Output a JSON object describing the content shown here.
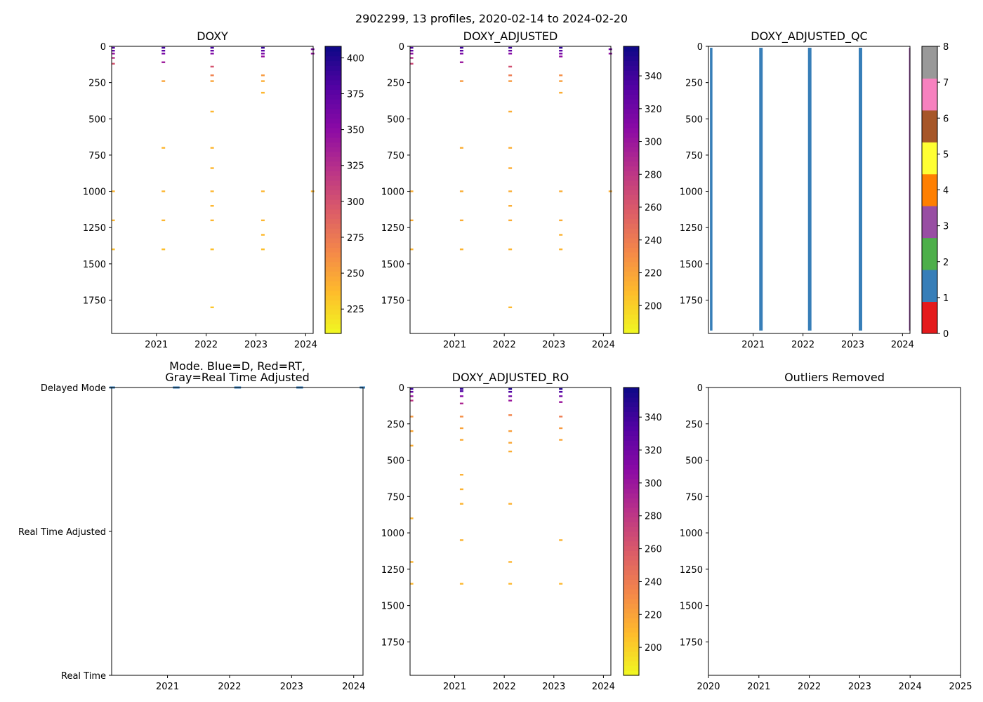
{
  "figure": {
    "suptitle": "2902299, 13 profiles, 2020-02-14 to 2024-02-20"
  },
  "chart_data": [
    {
      "id": "doxy",
      "type": "heatmap",
      "title": "DOXY",
      "xlim": [
        2020.1,
        2024.15
      ],
      "ylim": [
        1980,
        0
      ],
      "xticks": [
        2021,
        2022,
        2023,
        2024
      ],
      "xtick_labels": [
        "2021",
        "2022",
        "2023",
        "2024"
      ],
      "yticks": [
        0,
        250,
        500,
        750,
        1000,
        1250,
        1500,
        1750
      ],
      "ytick_labels": [
        "0",
        "250",
        "500",
        "750",
        "1000",
        "1250",
        "1500",
        "1750"
      ],
      "colorbar": {
        "cmap": "plasma_r",
        "range": [
          208,
          408
        ],
        "ticks": [
          225,
          250,
          275,
          300,
          325,
          350,
          375,
          400
        ],
        "tick_labels": [
          "225",
          "250",
          "275",
          "300",
          "325",
          "350",
          "375",
          "400"
        ]
      },
      "points": [
        {
          "t": 2020.13,
          "depth": 10,
          "value": 380
        },
        {
          "t": 2020.13,
          "depth": 30,
          "value": 370
        },
        {
          "t": 2020.13,
          "depth": 50,
          "value": 345
        },
        {
          "t": 2020.13,
          "depth": 80,
          "value": 320
        },
        {
          "t": 2020.13,
          "depth": 120,
          "value": 300
        },
        {
          "t": 2020.13,
          "depth": 1000,
          "value": 240
        },
        {
          "t": 2020.13,
          "depth": 1200,
          "value": 240
        },
        {
          "t": 2020.13,
          "depth": 1400,
          "value": 235
        },
        {
          "t": 2021.14,
          "depth": 10,
          "value": 385
        },
        {
          "t": 2021.14,
          "depth": 30,
          "value": 375
        },
        {
          "t": 2021.14,
          "depth": 50,
          "value": 360
        },
        {
          "t": 2021.14,
          "depth": 110,
          "value": 340
        },
        {
          "t": 2021.14,
          "depth": 240,
          "value": 250
        },
        {
          "t": 2021.14,
          "depth": 700,
          "value": 240
        },
        {
          "t": 2021.14,
          "depth": 1000,
          "value": 240
        },
        {
          "t": 2021.14,
          "depth": 1200,
          "value": 240
        },
        {
          "t": 2021.14,
          "depth": 1400,
          "value": 235
        },
        {
          "t": 2022.12,
          "depth": 10,
          "value": 385
        },
        {
          "t": 2022.12,
          "depth": 30,
          "value": 370
        },
        {
          "t": 2022.12,
          "depth": 50,
          "value": 355
        },
        {
          "t": 2022.12,
          "depth": 140,
          "value": 300
        },
        {
          "t": 2022.12,
          "depth": 200,
          "value": 270
        },
        {
          "t": 2022.12,
          "depth": 240,
          "value": 250
        },
        {
          "t": 2022.12,
          "depth": 450,
          "value": 240
        },
        {
          "t": 2022.12,
          "depth": 700,
          "value": 240
        },
        {
          "t": 2022.12,
          "depth": 840,
          "value": 240
        },
        {
          "t": 2022.12,
          "depth": 1000,
          "value": 240
        },
        {
          "t": 2022.12,
          "depth": 1100,
          "value": 240
        },
        {
          "t": 2022.12,
          "depth": 1200,
          "value": 240
        },
        {
          "t": 2022.12,
          "depth": 1400,
          "value": 235
        },
        {
          "t": 2022.12,
          "depth": 1800,
          "value": 232
        },
        {
          "t": 2023.14,
          "depth": 10,
          "value": 390
        },
        {
          "t": 2023.14,
          "depth": 30,
          "value": 375
        },
        {
          "t": 2023.14,
          "depth": 50,
          "value": 360
        },
        {
          "t": 2023.14,
          "depth": 70,
          "value": 345
        },
        {
          "t": 2023.14,
          "depth": 200,
          "value": 255
        },
        {
          "t": 2023.14,
          "depth": 240,
          "value": 245
        },
        {
          "t": 2023.14,
          "depth": 320,
          "value": 240
        },
        {
          "t": 2023.14,
          "depth": 1000,
          "value": 240
        },
        {
          "t": 2023.14,
          "depth": 1200,
          "value": 240
        },
        {
          "t": 2023.14,
          "depth": 1300,
          "value": 238
        },
        {
          "t": 2023.14,
          "depth": 1400,
          "value": 235
        },
        {
          "t": 2024.14,
          "depth": 20,
          "value": 360
        },
        {
          "t": 2024.14,
          "depth": 50,
          "value": 345
        },
        {
          "t": 2024.14,
          "depth": 1000,
          "value": 240
        }
      ]
    },
    {
      "id": "doxy-adjusted",
      "type": "heatmap",
      "title": "DOXY_ADJUSTED",
      "xlim": [
        2020.1,
        2024.15
      ],
      "ylim": [
        1980,
        0
      ],
      "xticks": [
        2021,
        2022,
        2023,
        2024
      ],
      "xtick_labels": [
        "2021",
        "2022",
        "2023",
        "2024"
      ],
      "yticks": [
        0,
        250,
        500,
        750,
        1000,
        1250,
        1500,
        1750
      ],
      "ytick_labels": [
        "0",
        "250",
        "500",
        "750",
        "1000",
        "1250",
        "1500",
        "1750"
      ],
      "colorbar": {
        "cmap": "plasma_r",
        "range": [
          183,
          358
        ],
        "ticks": [
          200,
          220,
          240,
          260,
          280,
          300,
          320,
          340
        ],
        "tick_labels": [
          "200",
          "220",
          "240",
          "260",
          "280",
          "300",
          "320",
          "340"
        ]
      },
      "points": [
        {
          "t": 2020.13,
          "depth": 10,
          "value": 335
        },
        {
          "t": 2020.13,
          "depth": 30,
          "value": 325
        },
        {
          "t": 2020.13,
          "depth": 50,
          "value": 305
        },
        {
          "t": 2020.13,
          "depth": 80,
          "value": 285
        },
        {
          "t": 2020.13,
          "depth": 120,
          "value": 270
        },
        {
          "t": 2020.13,
          "depth": 1000,
          "value": 215
        },
        {
          "t": 2020.13,
          "depth": 1200,
          "value": 215
        },
        {
          "t": 2020.13,
          "depth": 1400,
          "value": 212
        },
        {
          "t": 2021.14,
          "depth": 10,
          "value": 340
        },
        {
          "t": 2021.14,
          "depth": 30,
          "value": 330
        },
        {
          "t": 2021.14,
          "depth": 50,
          "value": 315
        },
        {
          "t": 2021.14,
          "depth": 110,
          "value": 300
        },
        {
          "t": 2021.14,
          "depth": 240,
          "value": 225
        },
        {
          "t": 2021.14,
          "depth": 700,
          "value": 215
        },
        {
          "t": 2021.14,
          "depth": 1000,
          "value": 215
        },
        {
          "t": 2021.14,
          "depth": 1200,
          "value": 215
        },
        {
          "t": 2021.14,
          "depth": 1400,
          "value": 212
        },
        {
          "t": 2022.12,
          "depth": 10,
          "value": 340
        },
        {
          "t": 2022.12,
          "depth": 30,
          "value": 325
        },
        {
          "t": 2022.12,
          "depth": 50,
          "value": 310
        },
        {
          "t": 2022.12,
          "depth": 140,
          "value": 265
        },
        {
          "t": 2022.12,
          "depth": 200,
          "value": 240
        },
        {
          "t": 2022.12,
          "depth": 240,
          "value": 225
        },
        {
          "t": 2022.12,
          "depth": 450,
          "value": 215
        },
        {
          "t": 2022.12,
          "depth": 700,
          "value": 215
        },
        {
          "t": 2022.12,
          "depth": 840,
          "value": 215
        },
        {
          "t": 2022.12,
          "depth": 1000,
          "value": 215
        },
        {
          "t": 2022.12,
          "depth": 1100,
          "value": 215
        },
        {
          "t": 2022.12,
          "depth": 1200,
          "value": 215
        },
        {
          "t": 2022.12,
          "depth": 1400,
          "value": 212
        },
        {
          "t": 2022.12,
          "depth": 1800,
          "value": 210
        },
        {
          "t": 2023.14,
          "depth": 10,
          "value": 345
        },
        {
          "t": 2023.14,
          "depth": 30,
          "value": 330
        },
        {
          "t": 2023.14,
          "depth": 50,
          "value": 318
        },
        {
          "t": 2023.14,
          "depth": 70,
          "value": 305
        },
        {
          "t": 2023.14,
          "depth": 200,
          "value": 230
        },
        {
          "t": 2023.14,
          "depth": 240,
          "value": 222
        },
        {
          "t": 2023.14,
          "depth": 320,
          "value": 215
        },
        {
          "t": 2023.14,
          "depth": 1000,
          "value": 215
        },
        {
          "t": 2023.14,
          "depth": 1200,
          "value": 215
        },
        {
          "t": 2023.14,
          "depth": 1300,
          "value": 213
        },
        {
          "t": 2023.14,
          "depth": 1400,
          "value": 212
        },
        {
          "t": 2024.14,
          "depth": 20,
          "value": 320
        },
        {
          "t": 2024.14,
          "depth": 50,
          "value": 305
        },
        {
          "t": 2024.14,
          "depth": 1000,
          "value": 215
        }
      ]
    },
    {
      "id": "doxy-adjusted-qc",
      "type": "heatmap",
      "title": "DOXY_ADJUSTED_QC",
      "xlim": [
        2020.1,
        2024.15
      ],
      "ylim": [
        1980,
        0
      ],
      "xticks": [
        2021,
        2022,
        2023,
        2024
      ],
      "xtick_labels": [
        "2021",
        "2022",
        "2023",
        "2024"
      ],
      "yticks": [
        0,
        250,
        500,
        750,
        1000,
        1250,
        1500,
        1750
      ],
      "ytick_labels": [
        "0",
        "250",
        "500",
        "750",
        "1000",
        "1250",
        "1500",
        "1750"
      ],
      "colorbar": {
        "cmap": "qc_flags",
        "range": [
          0,
          8
        ],
        "ticks": [
          0,
          1,
          2,
          3,
          4,
          5,
          6,
          7,
          8
        ],
        "tick_labels": [
          "0",
          "1",
          "2",
          "3",
          "4",
          "5",
          "6",
          "7",
          "8"
        ],
        "colors": [
          "#e41a1c",
          "#377eb8",
          "#4daf4a",
          "#984ea3",
          "#ff7f00",
          "#ffff33",
          "#a65628",
          "#f781bf",
          "#999999"
        ]
      },
      "bands": [
        {
          "t0": 2020.13,
          "t1": 2020.18,
          "depth0": 10,
          "depth1": 1960,
          "flag": 1
        },
        {
          "t0": 2021.12,
          "t1": 2021.19,
          "depth0": 10,
          "depth1": 1960,
          "flag": 1
        },
        {
          "t0": 2022.1,
          "t1": 2022.17,
          "depth0": 10,
          "depth1": 1960,
          "flag": 1
        },
        {
          "t0": 2023.12,
          "t1": 2023.19,
          "depth0": 10,
          "depth1": 1960,
          "flag": 1
        },
        {
          "t0": 2024.13,
          "t1": 2024.145,
          "depth0": 10,
          "depth1": 1960,
          "flag": 3
        }
      ]
    },
    {
      "id": "mode",
      "type": "scatter",
      "title": "Mode. Blue=D, Red=RT,\nGray=Real Time Adjusted",
      "xlim": [
        2020.1,
        2024.15
      ],
      "ylim": [
        0,
        2
      ],
      "xticks": [
        2021,
        2022,
        2023,
        2024
      ],
      "xtick_labels": [
        "2021",
        "2022",
        "2023",
        "2024"
      ],
      "yticks": [
        0,
        1,
        2
      ],
      "ytick_labels": [
        "Real Time",
        "Real Time Adjusted",
        "Delayed Mode"
      ],
      "points": [
        {
          "t": 2020.1,
          "mode": 2
        },
        {
          "t": 2020.12,
          "mode": 2
        },
        {
          "t": 2021.12,
          "mode": 2
        },
        {
          "t": 2021.14,
          "mode": 2
        },
        {
          "t": 2021.16,
          "mode": 2
        },
        {
          "t": 2022.11,
          "mode": 2
        },
        {
          "t": 2022.13,
          "mode": 2
        },
        {
          "t": 2022.15,
          "mode": 2
        },
        {
          "t": 2023.11,
          "mode": 2
        },
        {
          "t": 2023.13,
          "mode": 2
        },
        {
          "t": 2023.15,
          "mode": 2
        },
        {
          "t": 2024.13,
          "mode": 2
        },
        {
          "t": 2024.15,
          "mode": 2
        }
      ],
      "point_color": "#377eb8"
    },
    {
      "id": "doxy-adjusted-ro",
      "type": "heatmap",
      "title": "DOXY_ADJUSTED_RO",
      "xlim": [
        2020.1,
        2024.15
      ],
      "ylim": [
        1980,
        0
      ],
      "xticks": [
        2021,
        2022,
        2023,
        2024
      ],
      "xtick_labels": [
        "2021",
        "2022",
        "2023",
        "2024"
      ],
      "yticks": [
        0,
        250,
        500,
        750,
        1000,
        1250,
        1500,
        1750
      ],
      "ytick_labels": [
        "0",
        "250",
        "500",
        "750",
        "1000",
        "1250",
        "1500",
        "1750"
      ],
      "colorbar": {
        "cmap": "plasma_r",
        "range": [
          183,
          358
        ],
        "ticks": [
          200,
          220,
          240,
          260,
          280,
          300,
          320,
          340
        ],
        "tick_labels": [
          "200",
          "220",
          "240",
          "260",
          "280",
          "300",
          "320",
          "340"
        ]
      },
      "points": [
        {
          "t": 2020.13,
          "depth": 10,
          "value": 340
        },
        {
          "t": 2020.13,
          "depth": 30,
          "value": 325
        },
        {
          "t": 2020.13,
          "depth": 60,
          "value": 300
        },
        {
          "t": 2020.13,
          "depth": 90,
          "value": 280
        },
        {
          "t": 2020.13,
          "depth": 200,
          "value": 225
        },
        {
          "t": 2020.13,
          "depth": 300,
          "value": 218
        },
        {
          "t": 2020.13,
          "depth": 400,
          "value": 215
        },
        {
          "t": 2020.13,
          "depth": 900,
          "value": 212
        },
        {
          "t": 2020.13,
          "depth": 1200,
          "value": 212
        },
        {
          "t": 2020.13,
          "depth": 1350,
          "value": 210
        },
        {
          "t": 2021.14,
          "depth": 10,
          "value": 345
        },
        {
          "t": 2021.14,
          "depth": 25,
          "value": 335
        },
        {
          "t": 2021.14,
          "depth": 60,
          "value": 310
        },
        {
          "t": 2021.14,
          "depth": 110,
          "value": 290
        },
        {
          "t": 2021.14,
          "depth": 200,
          "value": 230
        },
        {
          "t": 2021.14,
          "depth": 280,
          "value": 220
        },
        {
          "t": 2021.14,
          "depth": 360,
          "value": 216
        },
        {
          "t": 2021.14,
          "depth": 600,
          "value": 214
        },
        {
          "t": 2021.14,
          "depth": 700,
          "value": 213
        },
        {
          "t": 2021.14,
          "depth": 800,
          "value": 212
        },
        {
          "t": 2021.14,
          "depth": 1050,
          "value": 212
        },
        {
          "t": 2021.14,
          "depth": 1350,
          "value": 210
        },
        {
          "t": 2022.12,
          "depth": 10,
          "value": 350
        },
        {
          "t": 2022.12,
          "depth": 30,
          "value": 335
        },
        {
          "t": 2022.12,
          "depth": 60,
          "value": 320
        },
        {
          "t": 2022.12,
          "depth": 90,
          "value": 300
        },
        {
          "t": 2022.12,
          "depth": 190,
          "value": 235
        },
        {
          "t": 2022.12,
          "depth": 300,
          "value": 222
        },
        {
          "t": 2022.12,
          "depth": 380,
          "value": 218
        },
        {
          "t": 2022.12,
          "depth": 440,
          "value": 215
        },
        {
          "t": 2022.12,
          "depth": 800,
          "value": 213
        },
        {
          "t": 2022.12,
          "depth": 1200,
          "value": 212
        },
        {
          "t": 2022.12,
          "depth": 1350,
          "value": 210
        },
        {
          "t": 2023.14,
          "depth": 10,
          "value": 350
        },
        {
          "t": 2023.14,
          "depth": 30,
          "value": 335
        },
        {
          "t": 2023.14,
          "depth": 60,
          "value": 320
        },
        {
          "t": 2023.14,
          "depth": 100,
          "value": 300
        },
        {
          "t": 2023.14,
          "depth": 200,
          "value": 240
        },
        {
          "t": 2023.14,
          "depth": 280,
          "value": 225
        },
        {
          "t": 2023.14,
          "depth": 360,
          "value": 218
        },
        {
          "t": 2023.14,
          "depth": 1050,
          "value": 212
        },
        {
          "t": 2023.14,
          "depth": 1350,
          "value": 210
        }
      ]
    },
    {
      "id": "outliers-removed",
      "type": "scatter",
      "title": "Outliers Removed",
      "xlim": [
        2020,
        2025
      ],
      "ylim": [
        1980,
        0
      ],
      "xticks": [
        2020,
        2021,
        2022,
        2023,
        2024,
        2025
      ],
      "xtick_labels": [
        "2020",
        "2021",
        "2022",
        "2023",
        "2024",
        "2025"
      ],
      "yticks": [
        0,
        250,
        500,
        750,
        1000,
        1250,
        1500,
        1750
      ],
      "ytick_labels": [
        "0",
        "250",
        "500",
        "750",
        "1000",
        "1250",
        "1500",
        "1750"
      ],
      "points": []
    }
  ]
}
